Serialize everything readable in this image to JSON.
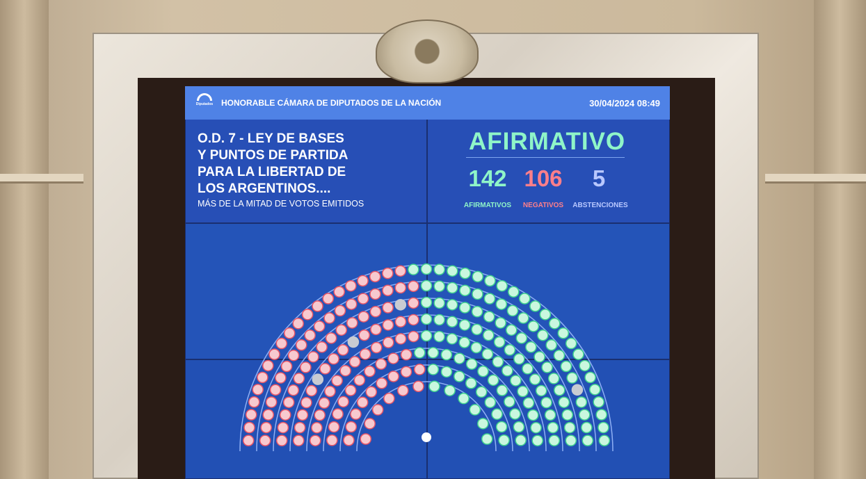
{
  "header": {
    "chamber": "HONORABLE CÁMARA DE DIPUTADOS DE LA NACIÓN",
    "logo_text": "DIPUTADOS ARGENTINA",
    "datetime": "30/04/2024 08:49"
  },
  "motion": {
    "title_lines": [
      "O.D. 7 - LEY DE BASES",
      "Y PUNTOS DE PARTIDA",
      "PARA LA LIBERTAD DE",
      "LOS ARGENTINOS...."
    ],
    "majority": "MÁS DE LA MITAD DE VOTOS EMITIDOS"
  },
  "result": {
    "outcome": "AFIRMATIVO",
    "counts": [
      {
        "value": "142",
        "label": "AFIRMATIVOS",
        "color": "#8ff5c8"
      },
      {
        "value": "106",
        "label": "NEGATIVOS",
        "color": "#ff7f8a"
      },
      {
        "value": "5",
        "label": "ABSTENCIONES",
        "color": "#b8c8ff"
      }
    ]
  },
  "seat_colors": {
    "afirmativo": "#c9f7df",
    "negativo": "#f7c9cf",
    "abstencion": "#c8cbd2",
    "absent_ring": "#ffffff"
  }
}
